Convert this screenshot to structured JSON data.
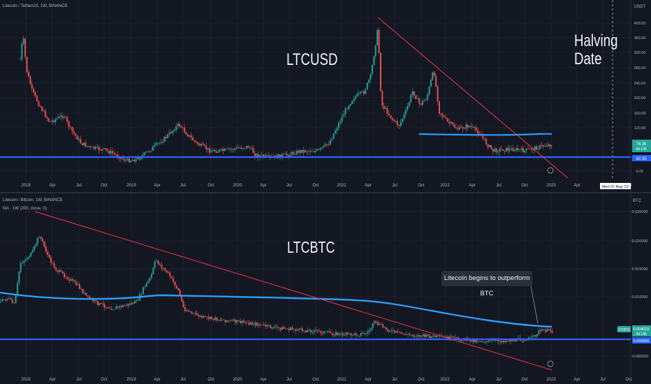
{
  "colors": {
    "background": "#131722",
    "up": "#26a69a",
    "down": "#ef5350",
    "ma": "#2f9bf5",
    "support": "#2962ff",
    "trend": "#f23645",
    "grid": "#1c2030",
    "text": "#b2b5be"
  },
  "time_axis": [
    "2018",
    "Apr",
    "Jul",
    "Oct",
    "2019",
    "Apr",
    "Jul",
    "Oct",
    "2020",
    "Apr",
    "Jul",
    "Oct",
    "2021",
    "Apr",
    "Jul",
    "Oct",
    "2022",
    "Apr",
    "Jul",
    "Oct",
    "2023",
    "Apr",
    "Jul",
    "Oct"
  ],
  "top": {
    "legend": "Litecoin / TetherUS, 1W, BINANCE",
    "title": "LTCUSD",
    "annotation_line1": "Halving",
    "annotation_line2": "Date",
    "currency": "USDT",
    "price_badge": "76.35",
    "price_badge_sub": "4d 13h",
    "support_badge": "42.29",
    "date_badge": "Mon 07 Aug '23",
    "price_ticks": [
      "400.00",
      "360.00",
      "320.00",
      "280.00",
      "240.00",
      "200.00",
      "160.00",
      "120.00",
      "0.00"
    ]
  },
  "bottom": {
    "legend": "Litecoin / Bitcoin, 1W, BINANCE",
    "ma_legend": "MA · 1W (200, close, 0)",
    "title": "LTCBTC",
    "callout": "Litecoin begins to outperform BTC",
    "currency": "BTC",
    "symbol_badge": "LTCBTC",
    "price_badge": "0.004529",
    "price_badge_sub": "4d 14h",
    "support_badge": "0.003066",
    "price_ticks": [
      "0.025000",
      "0.020000",
      "0.015000",
      "0.010000",
      "-0.000000"
    ]
  },
  "chart_data": [
    {
      "type": "candlestick",
      "title": "LTCUSD",
      "x": [
        "2018",
        "Apr",
        "Jul",
        "Oct",
        "2019",
        "Apr",
        "Jul",
        "Oct",
        "2020",
        "Apr",
        "Jul",
        "Oct",
        "2021",
        "Apr",
        "Jul",
        "Oct",
        "2022",
        "Apr",
        "Jul",
        "Oct",
        "2023"
      ],
      "close_approx": [
        280,
        120,
        75,
        55,
        32,
        85,
        120,
        55,
        45,
        40,
        45,
        60,
        150,
        280,
        140,
        200,
        125,
        100,
        55,
        52,
        76
      ],
      "support_level": 42.29,
      "ma_200w_approx": 88,
      "ylim": [
        0,
        430
      ]
    },
    {
      "type": "candlestick",
      "title": "LTCBTC",
      "x": [
        "2018",
        "Apr",
        "Jul",
        "Oct",
        "2019",
        "Apr",
        "Jul",
        "Oct",
        "2020",
        "Apr",
        "Jul",
        "Oct",
        "2021",
        "Apr",
        "Jul",
        "Oct",
        "2022",
        "Apr",
        "Jul",
        "Oct",
        "2023"
      ],
      "close_approx": [
        0.016,
        0.017,
        0.012,
        0.0085,
        0.0085,
        0.0145,
        0.0095,
        0.0065,
        0.006,
        0.0058,
        0.0048,
        0.0042,
        0.0045,
        0.0058,
        0.0038,
        0.0034,
        0.0032,
        0.003,
        0.0028,
        0.0032,
        0.0045
      ],
      "support_level": 0.003066,
      "ma_200w_approx": 0.0093,
      "ylim": [
        -0.001,
        0.026
      ]
    }
  ]
}
